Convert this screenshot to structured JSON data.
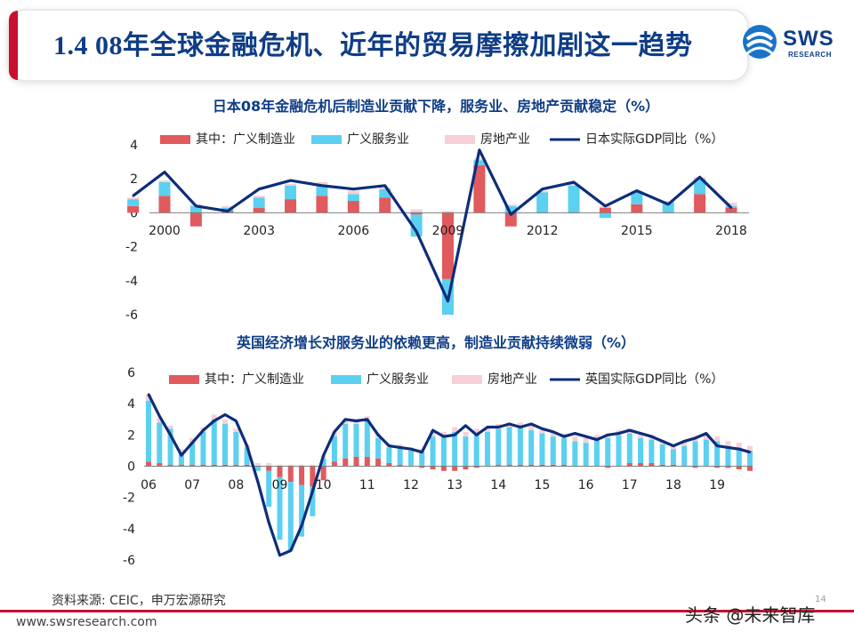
{
  "header": {
    "title": "1.4 08年全球金融危机、近年的贸易摩擦加剧这一趋势",
    "logo_text": "SWS",
    "logo_sub": "RESEARCH"
  },
  "colors": {
    "manufacturing": "#e05a5e",
    "services": "#5bd0f0",
    "real_estate": "#f7cfd6",
    "gdp_line": "#0d2d7a",
    "title": "#0f3d86",
    "accent": "#c8102e"
  },
  "chart_data": [
    {
      "type": "bar",
      "title": "日本08年金融危机后制造业贡献下降，服务业、房地产贡献稳定（%）",
      "legend": [
        "其中：广义制造业",
        "广义服务业",
        "房地产业",
        "日本实际GDP同比（%）"
      ],
      "x": [
        1999,
        2000,
        2001,
        2002,
        2003,
        2004,
        2005,
        2006,
        2007,
        2008,
        2009,
        2010,
        2011,
        2012,
        2013,
        2014,
        2015,
        2016,
        2017,
        2018
      ],
      "x_tick_labels": [
        "2000",
        "2003",
        "2006",
        "2009",
        "2012",
        "2015",
        "2018"
      ],
      "x_tick_values": [
        2000,
        2003,
        2006,
        2009,
        2012,
        2015,
        2018
      ],
      "y_ticks": [
        "4",
        "2",
        "0",
        "-2",
        "-4",
        "-6"
      ],
      "ylim": [
        -6,
        4
      ],
      "series": [
        {
          "name": "其中：广义制造业",
          "values": [
            0.4,
            1.0,
            -0.8,
            0.1,
            0.3,
            0.8,
            1.0,
            0.7,
            0.9,
            -0.1,
            -3.9,
            2.8,
            -0.8,
            0.0,
            0.0,
            0.3,
            0.5,
            0.0,
            1.1,
            0.3
          ]
        },
        {
          "name": "广义服务业",
          "values": [
            0.4,
            0.8,
            0.4,
            0.2,
            0.6,
            0.8,
            0.6,
            0.4,
            0.5,
            -1.3,
            -2.1,
            0.3,
            0.4,
            1.2,
            1.6,
            -0.3,
            0.7,
            0.6,
            0.9,
            0.1
          ]
        },
        {
          "name": "房地产业",
          "values": [
            0.1,
            0.1,
            0.1,
            0.1,
            0.1,
            0.1,
            0.2,
            0.2,
            0.1,
            0.2,
            0.1,
            0.1,
            0.1,
            0.1,
            0.1,
            0.1,
            0.1,
            0.1,
            0.1,
            0.2
          ]
        },
        {
          "name": "日本实际GDP同比（%）",
          "values": [
            1.0,
            2.4,
            0.4,
            0.1,
            1.4,
            1.9,
            1.6,
            1.4,
            1.6,
            -1.1,
            -5.2,
            3.7,
            -0.1,
            1.4,
            1.8,
            0.4,
            1.3,
            0.5,
            2.1,
            0.3
          ]
        }
      ]
    },
    {
      "type": "bar",
      "title": "英国经济增长对服务业的依赖更高，制造业贡献持续微弱（%）",
      "legend": [
        "其中：广义制造业",
        "广义服务业",
        "房地产业",
        "英国实际GDP同比（%）"
      ],
      "x_tick_labels": [
        "06",
        "07",
        "08",
        "09",
        "10",
        "11",
        "12",
        "13",
        "14",
        "15",
        "16",
        "17",
        "18",
        "19"
      ],
      "y_ticks": [
        "6",
        "4",
        "2",
        "0",
        "-2",
        "-4",
        "-6"
      ],
      "ylim": [
        -7,
        6
      ],
      "quarters_per_year": 4,
      "series": [
        {
          "name": "其中：广义制造业",
          "values": [
            0.3,
            0.2,
            0.1,
            0.1,
            0.1,
            0.1,
            0.1,
            0.1,
            0.1,
            0.1,
            0.0,
            -0.3,
            -0.7,
            -1.0,
            -1.2,
            -1.3,
            -0.9,
            0.3,
            0.5,
            0.6,
            0.6,
            0.5,
            0.2,
            0.1,
            0.0,
            -0.1,
            -0.2,
            -0.3,
            -0.3,
            -0.2,
            -0.1,
            0.0,
            0.1,
            0.1,
            0.1,
            0.1,
            0.1,
            0.1,
            0.1,
            0.0,
            0.0,
            0.0,
            -0.1,
            0.0,
            0.2,
            0.2,
            0.2,
            0.1,
            0.1,
            0.0,
            -0.1,
            0.0,
            -0.1,
            -0.1,
            -0.2,
            -0.3
          ]
        },
        {
          "name": "广义服务业",
          "values": [
            3.9,
            2.6,
            2.3,
            0.8,
            1.4,
            2.1,
            2.9,
            2.6,
            2.1,
            1.1,
            -0.3,
            -2.3,
            -4.0,
            -4.4,
            -3.3,
            -1.9,
            0.5,
            1.6,
            2.2,
            2.1,
            2.3,
            1.3,
            1.0,
            1.1,
            1.0,
            0.9,
            1.9,
            1.9,
            2.2,
            1.9,
            2.1,
            2.2,
            2.3,
            2.4,
            2.4,
            2.2,
            2.0,
            1.8,
            1.7,
            1.6,
            1.5,
            1.7,
            1.8,
            2.0,
            1.9,
            1.6,
            1.5,
            1.3,
            1.0,
            1.3,
            1.6,
            1.7,
            1.6,
            1.3,
            1.2,
            1.0
          ]
        },
        {
          "name": "房地产业",
          "values": [
            0.4,
            0.3,
            0.2,
            0.2,
            0.3,
            0.3,
            0.3,
            0.3,
            0.2,
            0.2,
            0.2,
            0.2,
            0.1,
            0.1,
            0.1,
            0.1,
            0.2,
            0.3,
            0.3,
            0.3,
            0.3,
            0.3,
            0.2,
            0.2,
            0.2,
            0.2,
            0.3,
            0.3,
            0.3,
            0.3,
            0.3,
            0.3,
            0.3,
            0.3,
            0.3,
            0.3,
            0.3,
            0.3,
            0.3,
            0.3,
            0.3,
            0.3,
            0.3,
            0.3,
            0.3,
            0.3,
            0.3,
            0.3,
            0.3,
            0.3,
            0.3,
            0.3,
            0.3,
            0.3,
            0.3,
            0.3
          ]
        },
        {
          "name": "英国实际GDP同比（%）",
          "values": [
            4.6,
            3.2,
            2.0,
            0.7,
            1.5,
            2.3,
            2.9,
            3.3,
            2.9,
            1.3,
            -1.0,
            -3.6,
            -5.7,
            -5.4,
            -3.8,
            -1.6,
            0.7,
            2.2,
            3.0,
            2.9,
            3.0,
            2.0,
            1.3,
            1.2,
            1.1,
            0.9,
            2.3,
            1.9,
            2.0,
            2.6,
            2.0,
            2.5,
            2.5,
            2.7,
            2.5,
            2.7,
            2.4,
            2.2,
            1.9,
            2.1,
            1.9,
            1.7,
            2.0,
            2.1,
            2.3,
            2.1,
            1.9,
            1.6,
            1.3,
            1.6,
            1.8,
            2.1,
            1.3,
            1.2,
            1.1,
            0.9
          ]
        }
      ]
    }
  ],
  "footer": {
    "source": "资料来源: CEIC，申万宏源研究",
    "url": "www.swsresearch.com",
    "watermark": "头条 @未来智库",
    "page": "14"
  }
}
